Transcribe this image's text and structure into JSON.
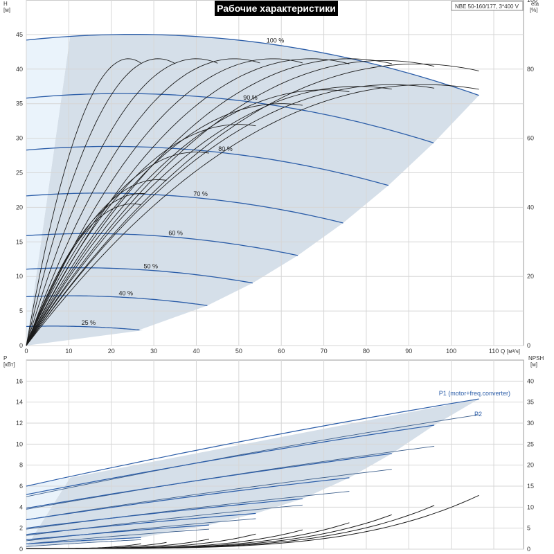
{
  "chart_data": [
    {
      "type": "line",
      "title": "Рабочие характеристики",
      "model": "NBE 50-160/177, 3*400 V",
      "y_title": "H",
      "y_unit": "[м]",
      "y2_title": "eta",
      "y2_unit": "[%]",
      "x_title": "Q",
      "x_unit": "[м³/ч]",
      "xlim": [
        0,
        117
      ],
      "ylim": [
        0,
        50
      ],
      "y2lim": [
        0,
        100
      ],
      "x_ticks": [
        0,
        10,
        20,
        30,
        40,
        50,
        60,
        70,
        80,
        90,
        100,
        110
      ],
      "y_ticks": [
        0,
        5,
        10,
        15,
        20,
        25,
        30,
        35,
        40,
        45
      ],
      "y2_ticks": [
        0,
        20,
        40,
        60,
        80,
        100
      ],
      "grid": true,
      "colors": {
        "envelope": "#d5dfe9",
        "min_flow_zone": "#eaf3fb",
        "head_curve": "#2b5da8",
        "efficiency_curve": "#1a1a1a"
      },
      "speed_curves": [
        {
          "label": "100 %",
          "speed": 1.0
        },
        {
          "label": "90 %",
          "speed": 0.9
        },
        {
          "label": "80 %",
          "speed": 0.8
        },
        {
          "label": "70 %",
          "speed": 0.7
        },
        {
          "label": "60 %",
          "speed": 0.6
        },
        {
          "label": "50 %",
          "speed": 0.5
        },
        {
          "label": "40 %",
          "speed": 0.4
        },
        {
          "label": "25 %",
          "speed": 0.25
        }
      ],
      "head_model": {
        "q_max_at_100": 106.5,
        "h_at_q0": 44.2,
        "peak_q": 29,
        "peak_h": 45.0,
        "h_at_qmax": 36.2
      },
      "efficiency_curves": [
        {
          "q_end": 27,
          "eta_peak": 41,
          "q_peak": 25
        },
        {
          "q_end": 28,
          "eta_peak": 44,
          "q_peak": 27
        },
        {
          "q_end": 33,
          "eta_peak": 48,
          "q_peak": 31
        },
        {
          "q_end": 43,
          "eta_peak": 56,
          "q_peak": 40
        },
        {
          "q_end": 54,
          "eta_peak": 64,
          "q_peak": 50
        },
        {
          "q_end": 65,
          "eta_peak": 70,
          "q_peak": 60
        },
        {
          "q_end": 76,
          "eta_peak": 74,
          "q_peak": 70
        },
        {
          "q_end": 86,
          "eta_peak": 75,
          "q_peak": 78
        },
        {
          "q_end": 96,
          "eta_peak": 75.5,
          "q_peak": 86
        },
        {
          "q_end": 106.5,
          "eta_peak": 75.5,
          "q_peak": 94
        },
        {
          "q_end": 27,
          "eta_peak": 83,
          "q_peak": 24
        },
        {
          "q_end": 35,
          "eta_peak": 83,
          "q_peak": 31
        },
        {
          "q_end": 45,
          "eta_peak": 83,
          "q_peak": 40
        },
        {
          "q_end": 55,
          "eta_peak": 83,
          "q_peak": 49
        },
        {
          "q_end": 65,
          "eta_peak": 83,
          "q_peak": 58
        },
        {
          "q_end": 76,
          "eta_peak": 83,
          "q_peak": 67
        },
        {
          "q_end": 86,
          "eta_peak": 83,
          "q_peak": 76
        },
        {
          "q_end": 96,
          "eta_peak": 82.5,
          "q_peak": 84
        },
        {
          "q_end": 106.5,
          "eta_peak": 81.5,
          "q_peak": 92
        }
      ]
    },
    {
      "type": "line",
      "y_title": "P",
      "y_unit": "[кВт]",
      "y2_title": "NPSH",
      "y2_unit": "[м]",
      "xlim": [
        0,
        117
      ],
      "ylim": [
        0,
        18
      ],
      "y2lim": [
        0,
        45
      ],
      "y_ticks": [
        0,
        2,
        4,
        6,
        8,
        10,
        12,
        14,
        16
      ],
      "y2_ticks": [
        0,
        5,
        10,
        15,
        20,
        25,
        30,
        35,
        40
      ],
      "grid": true,
      "labels": {
        "p1": "P1 (motor+freq.converter)",
        "p2": "P2"
      },
      "power_lines": [
        {
          "q_end": 27,
          "p_start": 0.25,
          "p_end": 0.9
        },
        {
          "q_end": 43,
          "p_start": 0.5,
          "p_end": 1.9
        },
        {
          "q_end": 54,
          "p_start": 0.8,
          "p_end": 2.9
        },
        {
          "q_end": 65,
          "p_start": 1.3,
          "p_end": 4.2
        },
        {
          "q_end": 76,
          "p_start": 1.9,
          "p_end": 5.5
        },
        {
          "q_end": 86,
          "p_start": 2.8,
          "p_end": 7.6
        },
        {
          "q_end": 96,
          "p_start": 3.8,
          "p_end": 9.8
        },
        {
          "q_end": 106.5,
          "p_start": 5.0,
          "p_end": 12.8
        }
      ],
      "power_curves": [
        {
          "q_end": 27,
          "p_start": 0.5,
          "p_end": 1.1
        },
        {
          "q_end": 43,
          "p_start": 0.9,
          "p_end": 2.3
        },
        {
          "q_end": 54,
          "p_start": 1.4,
          "p_end": 3.4
        },
        {
          "q_end": 65,
          "p_start": 2.0,
          "p_end": 4.8
        },
        {
          "q_end": 76,
          "p_start": 2.8,
          "p_end": 6.8
        },
        {
          "q_end": 86,
          "p_start": 3.9,
          "p_end": 9.1
        },
        {
          "q_end": 96,
          "p_start": 5.2,
          "p_end": 11.8
        },
        {
          "q_end": 106.5,
          "p_start": 6.0,
          "p_end": 14.3
        }
      ],
      "npsh_curves": [
        {
          "q_end": 27,
          "npsh_end": 1.3
        },
        {
          "q_end": 33,
          "npsh_end": 1.6
        },
        {
          "q_end": 43,
          "npsh_end": 2.4
        },
        {
          "q_end": 54,
          "npsh_end": 3.6
        },
        {
          "q_end": 65,
          "npsh_end": 4.6
        },
        {
          "q_end": 76,
          "npsh_end": 6.3
        },
        {
          "q_end": 86,
          "npsh_end": 8.2
        },
        {
          "q_end": 96,
          "npsh_end": 10.4
        },
        {
          "q_end": 106.5,
          "npsh_end": 12.8
        }
      ]
    }
  ]
}
